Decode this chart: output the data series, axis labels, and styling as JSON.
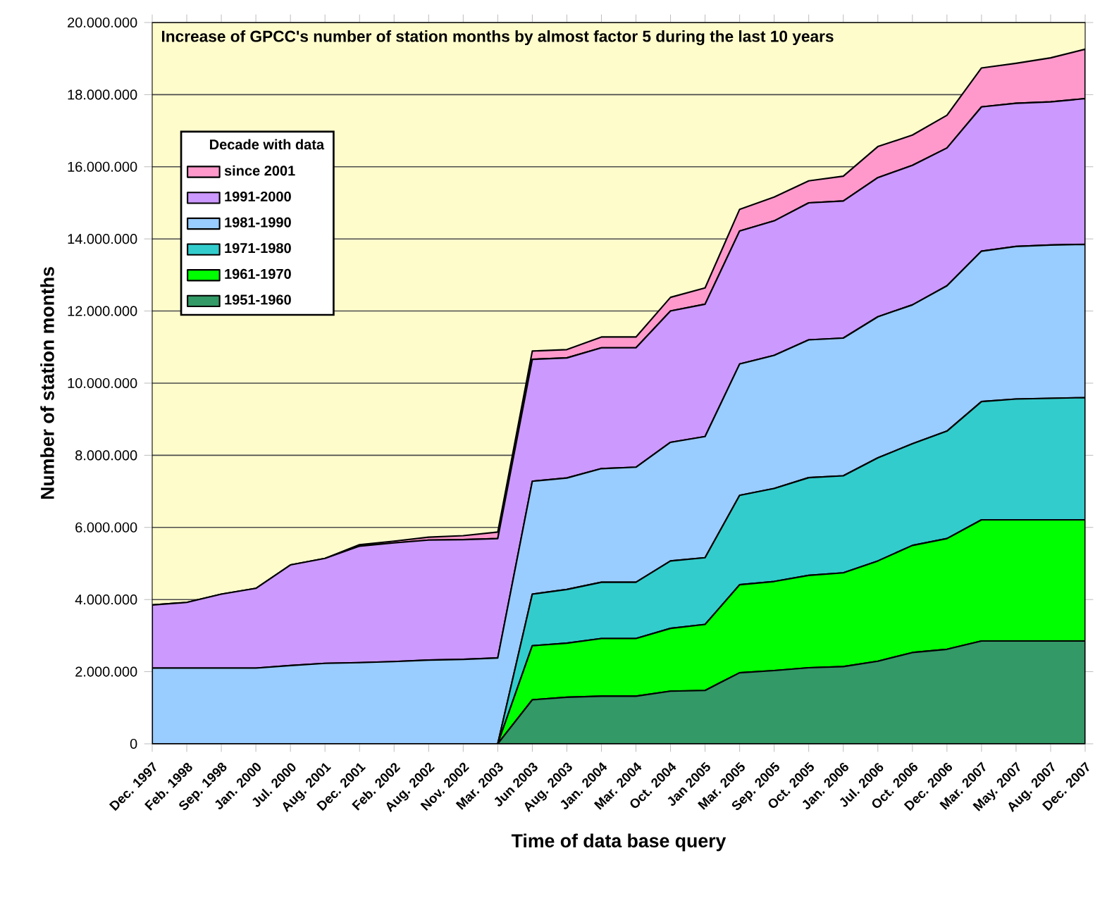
{
  "chart_data": {
    "type": "area",
    "stacked": true,
    "xlabel": "Time of data base query",
    "ylabel": "Number of station months",
    "legend_title": "Decade with data",
    "legend": "top left",
    "grid": "y",
    "annotations": [
      "Increase of GPCC's number of station months by almost factor 5 during the last 10 years"
    ],
    "categories": [
      "Dec. 1997",
      "Feb. 1998",
      "Sep. 1998",
      "Jan. 2000",
      "Jul. 2000",
      "Aug. 2001",
      "Dec. 2001",
      "Feb. 2002",
      "Aug. 2002",
      "Nov. 2002",
      "Mar. 2003",
      "Jun 2003",
      "Aug. 2003",
      "Jan. 2004",
      "Mar. 2004",
      "Oct. 2004",
      "Jan 2005",
      "Mar. 2005",
      "Sep. 2005",
      "Oct. 2005",
      "Jan. 2006",
      "Jul. 2006",
      "Oct. 2006",
      "Dec. 2006",
      "Mar. 2007",
      "May. 2007",
      "Aug. 2007",
      "Dec. 2007"
    ],
    "ylim": [
      0,
      20000000
    ],
    "yticks": [
      0,
      {
        "value": 2000000,
        "label": "2.000.000"
      },
      {
        "value": 4000000,
        "label": "4.000.000"
      },
      {
        "value": 6000000,
        "label": "6.000.000"
      },
      {
        "value": 8000000,
        "label": "8.000.000"
      },
      {
        "value": 10000000,
        "label": "10.000.000"
      },
      {
        "value": 12000000,
        "label": "12.000.000"
      },
      {
        "value": 14000000,
        "label": "14.000.000"
      },
      {
        "value": 16000000,
        "label": "16.000.000"
      },
      {
        "value": 18000000,
        "label": "18.000.000"
      },
      {
        "value": 20000000,
        "label": "20.000.000"
      }
    ],
    "series": [
      {
        "name": "1951-1960",
        "color": "#339966",
        "values": [
          0,
          0,
          0,
          0,
          0,
          0,
          0,
          0,
          0,
          0,
          0,
          1220000,
          1290000,
          1320000,
          1320000,
          1460000,
          1480000,
          1970000,
          2030000,
          2110000,
          2140000,
          2290000,
          2530000,
          2620000,
          2850000,
          2850000,
          2850000,
          2850000
        ]
      },
      {
        "name": "1961-1970",
        "color": "#00ff00",
        "values": [
          0,
          0,
          0,
          0,
          0,
          0,
          0,
          0,
          0,
          0,
          0,
          1500000,
          1500000,
          1600000,
          1600000,
          1740000,
          1830000,
          2440000,
          2470000,
          2560000,
          2600000,
          2780000,
          2970000,
          3070000,
          3360000,
          3360000,
          3360000,
          3360000
        ]
      },
      {
        "name": "1971-1980",
        "color": "#33cccc",
        "values": [
          0,
          0,
          0,
          0,
          0,
          0,
          0,
          0,
          0,
          0,
          0,
          1430000,
          1490000,
          1560000,
          1560000,
          1870000,
          1850000,
          2480000,
          2580000,
          2710000,
          2690000,
          2860000,
          2820000,
          2980000,
          3280000,
          3350000,
          3370000,
          3390000
        ]
      },
      {
        "name": "1981-1990",
        "color": "#99ccff",
        "values": [
          2100000,
          2100000,
          2100000,
          2100000,
          2170000,
          2230000,
          2250000,
          2280000,
          2320000,
          2340000,
          2380000,
          3130000,
          3090000,
          3150000,
          3190000,
          3290000,
          3360000,
          3640000,
          3690000,
          3820000,
          3820000,
          3910000,
          3850000,
          4030000,
          4170000,
          4230000,
          4250000,
          4250000
        ]
      },
      {
        "name": "1991-2000",
        "color": "#cc99ff",
        "values": [
          1750000,
          1820000,
          2050000,
          2210000,
          2790000,
          2910000,
          3230000,
          3290000,
          3330000,
          3320000,
          3310000,
          3380000,
          3330000,
          3350000,
          3310000,
          3640000,
          3670000,
          3690000,
          3730000,
          3800000,
          3800000,
          3860000,
          3870000,
          3820000,
          4000000,
          3970000,
          3970000,
          4040000
        ]
      },
      {
        "name": "since 2001",
        "color": "#ff99cc",
        "values": [
          0,
          0,
          0,
          0,
          0,
          0,
          40000,
          50000,
          80000,
          110000,
          180000,
          230000,
          230000,
          300000,
          300000,
          380000,
          450000,
          600000,
          660000,
          610000,
          690000,
          860000,
          840000,
          910000,
          1080000,
          1110000,
          1220000,
          1370000
        ]
      }
    ]
  }
}
